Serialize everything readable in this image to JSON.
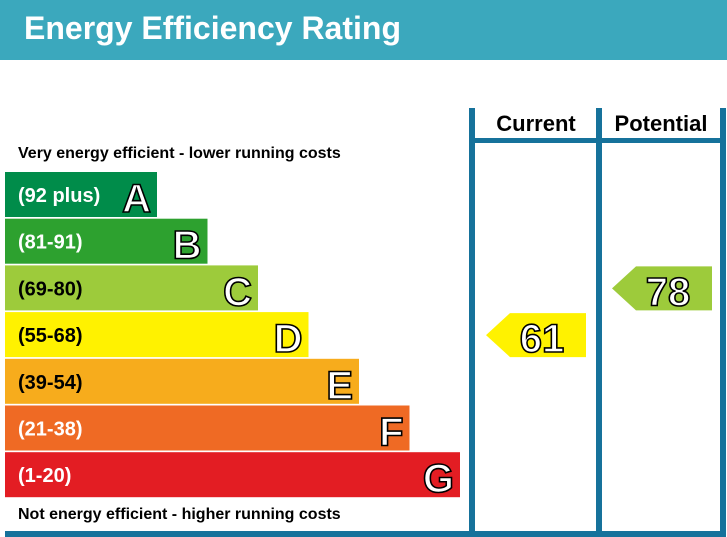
{
  "header": {
    "title": "Energy Efficiency Rating"
  },
  "columns": {
    "current": "Current",
    "potential": "Potential"
  },
  "top_note": "Very energy efficient - lower running costs",
  "bottom_note": "Not energy efficient - higher running costs",
  "colors": {
    "header": "#3ba8bd",
    "frame": "#16729b"
  },
  "chart_data": {
    "type": "bar",
    "bands": [
      {
        "range": "(92 plus)",
        "letter": "A",
        "color": "#008c4a"
      },
      {
        "range": "(81-91)",
        "letter": "B",
        "color": "#2da12f"
      },
      {
        "range": "(69-80)",
        "letter": "C",
        "color": "#9dcb3b"
      },
      {
        "range": "(55-68)",
        "letter": "D",
        "color": "#fff200"
      },
      {
        "range": "(39-54)",
        "letter": "E",
        "color": "#f7ac1c"
      },
      {
        "range": "(21-38)",
        "letter": "F",
        "color": "#ef6a24"
      },
      {
        "range": "(1-20)",
        "letter": "G",
        "color": "#e31d23"
      }
    ],
    "current": {
      "value": 61,
      "band": "D"
    },
    "potential": {
      "value": 78,
      "band": "C"
    }
  }
}
